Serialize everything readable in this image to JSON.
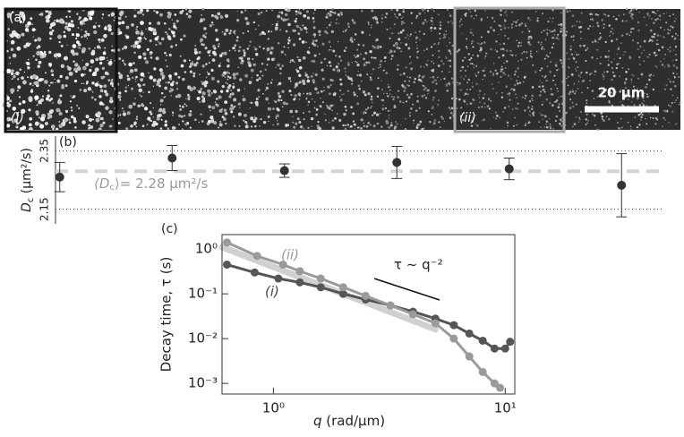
{
  "image": {
    "panel_label": "(a)",
    "region_labels": [
      "(i)",
      "(ii)"
    ],
    "scale_bar": "20 µm"
  },
  "chart_data": [
    {
      "type": "scatter",
      "panel_label": "(b)",
      "ylabel": [
        "D",
        "c",
        " (µm²/s)"
      ],
      "categories": [
        null,
        null,
        null,
        null,
        null,
        null
      ],
      "series": [
        {
          "color": "#333333",
          "values": [
            2.26,
            2.325,
            2.282,
            2.31,
            2.288,
            2.232
          ],
          "errors": [
            0.05,
            0.043,
            0.023,
            0.055,
            0.037,
            0.108
          ]
        }
      ],
      "ylim": [
        2.1,
        2.4
      ],
      "yticks": [
        2.15,
        2.35
      ],
      "grid": "dotted",
      "mean": 2.28,
      "mean_label": [
        "⟨D",
        "c",
        "⟩= 2.28 µm²/s"
      ],
      "mean_color": "#d4d4d4"
    },
    {
      "type": "line",
      "panel_label": "(c)",
      "xlabel": [
        "q",
        " (rad/µm)"
      ],
      "ylabel": "Decay time, τ (s)",
      "log_x": true,
      "log_y": true,
      "xlim": [
        0.6,
        11
      ],
      "ylim": [
        0.00058,
        2.1
      ],
      "xticks": [
        {
          "value": 1,
          "label": "10⁰"
        },
        {
          "value": 10,
          "label": "10¹"
        }
      ],
      "yticks": [
        {
          "value": 1,
          "label": "10⁰"
        },
        {
          "value": 0.1,
          "label": "10⁻¹"
        },
        {
          "value": 0.01,
          "label": "10⁻²"
        },
        {
          "value": 0.001,
          "label": "10⁻³"
        }
      ],
      "series": [
        {
          "color": "#d0d0d0",
          "x": [
            0.6,
            5
          ],
          "values": [
            1.1,
            0.016
          ],
          "markers": false
        },
        {
          "name": "(i)",
          "color": "#555555",
          "markers": true,
          "x": [
            0.63,
            0.83,
            1.05,
            1.3,
            1.6,
            2,
            2.5,
            3.2,
            4,
            5,
            6,
            7,
            8,
            9,
            10,
            10.5
          ],
          "values": [
            0.45,
            0.3,
            0.22,
            0.18,
            0.14,
            0.1,
            0.075,
            0.055,
            0.04,
            0.028,
            0.02,
            0.013,
            0.009,
            0.006,
            0.006,
            0.0085
          ]
        },
        {
          "name": "(ii)",
          "color": "#9a9a9a",
          "markers": true,
          "x": [
            0.63,
            0.85,
            1.1,
            1.3,
            1.6,
            2,
            2.5,
            3.2,
            4,
            5,
            6,
            7,
            8,
            9,
            9.5
          ],
          "values": [
            1.4,
            0.7,
            0.45,
            0.32,
            0.22,
            0.14,
            0.09,
            0.055,
            0.035,
            0.022,
            0.01,
            0.004,
            0.0018,
            0.001,
            0.0008
          ]
        }
      ],
      "annotations": [
        "(i)",
        "(ii)",
        "τ ~ q⁻²"
      ]
    }
  ]
}
